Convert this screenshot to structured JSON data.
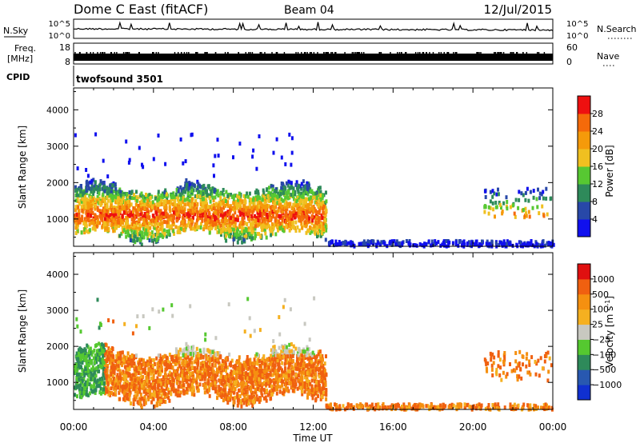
{
  "header": {
    "station": "Dome C East (fitACF)",
    "beam": "Beam 04",
    "date": "12/Jul/2015"
  },
  "strips": {
    "nsky_label": "N.Sky",
    "nsky_top": "10^5",
    "nsky_bottom": "10^0",
    "nsearch_label": "N.Search",
    "nsearch_top": "10^5",
    "nsearch_bottom": "10^0",
    "freq_label_1": "Freq.",
    "freq_label_2": "[MHz]",
    "freq_top": "18",
    "freq_bottom": "8",
    "nave_label": "Nave",
    "nave_top": "60",
    "nave_bottom": "0",
    "cpid_label": "CPID",
    "cpid_value": "twofsound 3501"
  },
  "colors": {
    "power_scale": [
      "#1010ee",
      "#2848a8",
      "#2e8a5a",
      "#57c832",
      "#f0c020",
      "#f59a0a",
      "#f56a0a",
      "#ee1010"
    ],
    "velocity_scale": [
      "#e01010",
      "#f06010",
      "#f59010",
      "#f5b020",
      "#c8c8c0",
      "#55c830",
      "#2e8a5a",
      "#2858b0",
      "#1030d0"
    ]
  },
  "chart_data": [
    {
      "type": "heatmap",
      "name": "power-panel",
      "ylabel": "Slant Range [km]",
      "xlabel": "",
      "y_ticks": [
        "1000",
        "2000",
        "3000",
        "4000"
      ],
      "ylim": [
        250,
        4600
      ],
      "xlim": [
        0,
        24
      ],
      "colorbar": {
        "label": "Power [dB]",
        "range": [
          0,
          32
        ],
        "ticks": [
          "4",
          "8",
          "12",
          "16",
          "20",
          "24",
          "28"
        ]
      }
    },
    {
      "type": "heatmap",
      "name": "velocity-panel",
      "ylabel": "Slant Range [km]",
      "xlabel": "Time UT",
      "x_ticks": [
        "00:00",
        "04:00",
        "08:00",
        "12:00",
        "16:00",
        "20:00",
        "00:00"
      ],
      "y_ticks": [
        "1000",
        "2000",
        "3000",
        "4000"
      ],
      "ylim": [
        250,
        4600
      ],
      "xlim": [
        0,
        24
      ],
      "colorbar": {
        "label": "Velocity [m s",
        "label_sup": "-1",
        "label_close": "]",
        "ticks": [
          "1000",
          "500",
          "100",
          "25",
          "−25",
          "−100",
          "−500",
          "−1000"
        ]
      }
    }
  ]
}
